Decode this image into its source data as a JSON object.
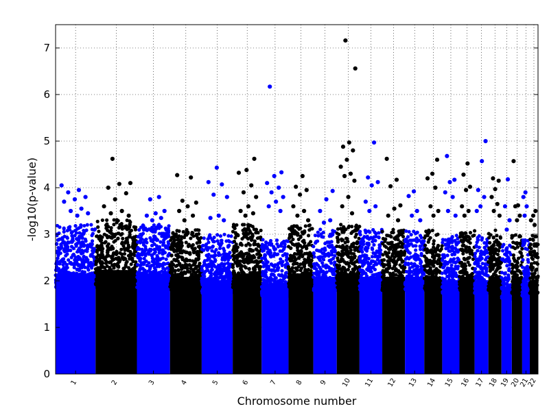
{
  "chart_data": {
    "type": "scatter",
    "title": "",
    "xlabel": "Chromosome number",
    "ylabel": "-log10(p-value)",
    "ylim": [
      0,
      7.5
    ],
    "yticks": [
      0,
      1,
      2,
      3,
      4,
      5,
      6,
      7
    ],
    "grid": true,
    "legend": "none",
    "colors": {
      "odd_chromosomes": "#0000ff",
      "even_chromosomes": "#000000"
    },
    "chromosomes": [
      {
        "label": "1",
        "color": "#0000ff",
        "bulk_max": 3.0,
        "top_hits": [
          4.05,
          3.95,
          3.9,
          3.8,
          3.75,
          3.7,
          3.55,
          3.5,
          3.45,
          3.4
        ]
      },
      {
        "label": "2",
        "color": "#000000",
        "bulk_max": 3.1,
        "top_hits": [
          4.62,
          4.1,
          4.08,
          4.0,
          3.88,
          3.75,
          3.6,
          3.5,
          3.45,
          3.4
        ]
      },
      {
        "label": "3",
        "color": "#0000ff",
        "bulk_max": 3.0,
        "top_hits": [
          3.8,
          3.75,
          3.5,
          3.45,
          3.4,
          3.35,
          3.3
        ]
      },
      {
        "label": "4",
        "color": "#000000",
        "bulk_max": 2.9,
        "top_hits": [
          4.27,
          4.22,
          3.72,
          3.68,
          3.6,
          3.5,
          3.4,
          3.3
        ]
      },
      {
        "label": "5",
        "color": "#0000ff",
        "bulk_max": 2.8,
        "top_hits": [
          4.43,
          4.12,
          4.07,
          3.85,
          3.8,
          3.4,
          3.35,
          3.3
        ]
      },
      {
        "label": "6",
        "color": "#000000",
        "bulk_max": 3.0,
        "top_hits": [
          4.62,
          4.38,
          4.32,
          4.05,
          3.9,
          3.8,
          3.6,
          3.5,
          3.45,
          3.4
        ]
      },
      {
        "label": "7",
        "color": "#0000ff",
        "bulk_max": 2.7,
        "top_hits": [
          6.17,
          4.33,
          4.25,
          4.1,
          4.0,
          3.9,
          3.8,
          3.7,
          3.6,
          3.5
        ]
      },
      {
        "label": "8",
        "color": "#000000",
        "bulk_max": 3.0,
        "top_hits": [
          4.25,
          4.02,
          3.95,
          3.85,
          3.6,
          3.5,
          3.4,
          3.3
        ]
      },
      {
        "label": "9",
        "color": "#0000ff",
        "bulk_max": 2.9,
        "top_hits": [
          3.93,
          3.75,
          3.5,
          3.3,
          3.25
        ]
      },
      {
        "label": "10",
        "color": "#000000",
        "bulk_max": 3.0,
        "top_hits": [
          7.16,
          6.56,
          4.97,
          4.88,
          4.8,
          4.6,
          4.45,
          4.3,
          4.25,
          4.15,
          3.8,
          3.6,
          3.45
        ]
      },
      {
        "label": "11",
        "color": "#0000ff",
        "bulk_max": 2.9,
        "top_hits": [
          4.97,
          4.22,
          4.12,
          4.05,
          3.7,
          3.6,
          3.5
        ]
      },
      {
        "label": "12",
        "color": "#000000",
        "bulk_max": 2.9,
        "top_hits": [
          4.62,
          4.17,
          4.03,
          3.62,
          3.55,
          3.4,
          3.3
        ]
      },
      {
        "label": "13",
        "color": "#0000ff",
        "bulk_max": 2.9,
        "top_hits": [
          3.92,
          3.82,
          3.5,
          3.4,
          3.3
        ]
      },
      {
        "label": "14",
        "color": "#000000",
        "bulk_max": 2.9,
        "top_hits": [
          4.6,
          4.3,
          4.2,
          4.0,
          3.6,
          3.5,
          3.4
        ]
      },
      {
        "label": "15",
        "color": "#0000ff",
        "bulk_max": 2.8,
        "top_hits": [
          4.68,
          4.17,
          4.12,
          3.9,
          3.8,
          3.5,
          3.4
        ]
      },
      {
        "label": "16",
        "color": "#000000",
        "bulk_max": 2.9,
        "top_hits": [
          4.52,
          4.28,
          4.02,
          3.95,
          3.6,
          3.5,
          3.4
        ]
      },
      {
        "label": "17",
        "color": "#0000ff",
        "bulk_max": 2.8,
        "top_hits": [
          5.0,
          4.57,
          3.95,
          3.8,
          3.6,
          3.5
        ]
      },
      {
        "label": "18",
        "color": "#000000",
        "bulk_max": 2.9,
        "top_hits": [
          4.2,
          4.15,
          3.97,
          3.8,
          3.65,
          3.5,
          3.4
        ]
      },
      {
        "label": "19",
        "color": "#0000ff",
        "bulk_max": 2.6,
        "top_hits": [
          4.18,
          3.6,
          3.3,
          3.1
        ]
      },
      {
        "label": "20",
        "color": "#000000",
        "bulk_max": 2.8,
        "top_hits": [
          4.57,
          3.62,
          3.6,
          3.4,
          3.3
        ]
      },
      {
        "label": "21",
        "color": "#0000ff",
        "bulk_max": 2.7,
        "top_hits": [
          3.9,
          3.8,
          3.6,
          3.4
        ]
      },
      {
        "label": "22",
        "color": "#000000",
        "bulk_max": 2.8,
        "top_hits": [
          3.5,
          3.4,
          3.3,
          3.2
        ]
      }
    ]
  }
}
